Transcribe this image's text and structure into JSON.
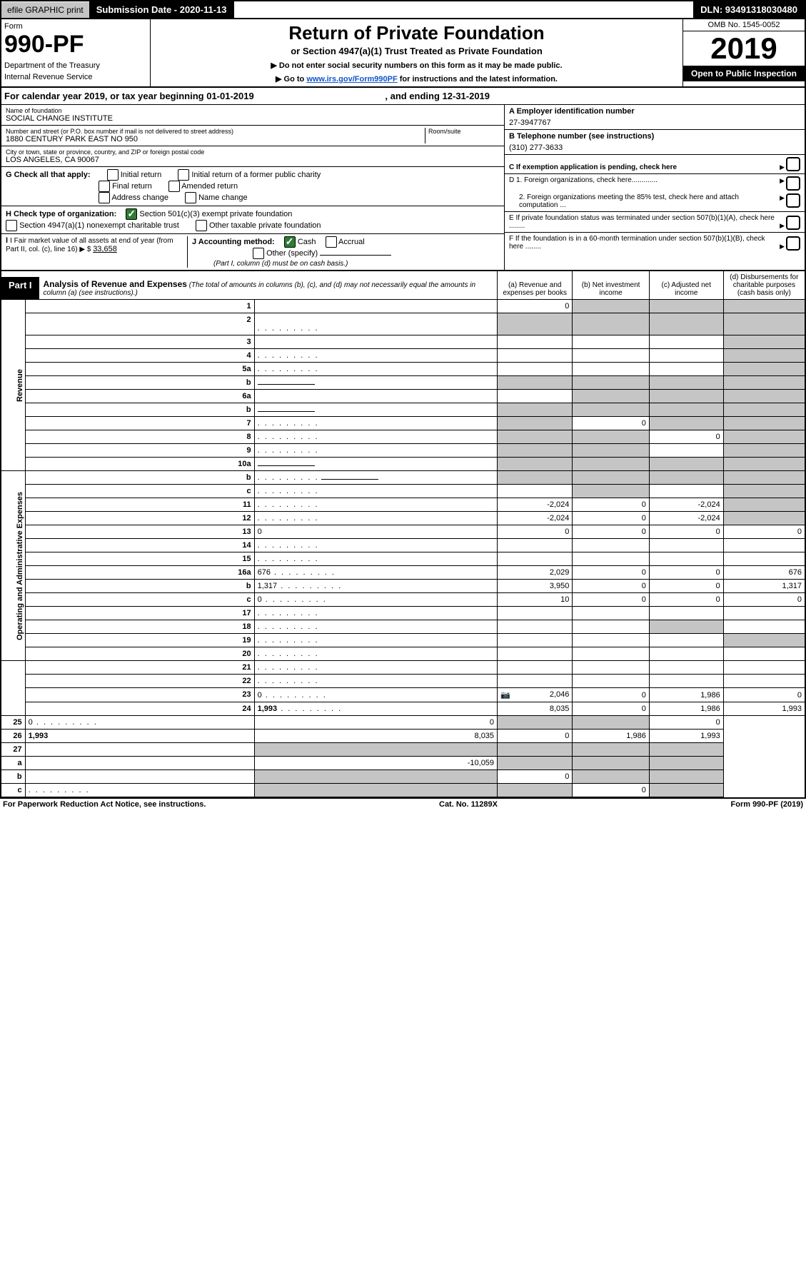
{
  "topbar": {
    "efile": "efile GRAPHIC print",
    "submission": "Submission Date - 2020-11-13",
    "dln": "DLN: 93491318030480"
  },
  "header": {
    "form_label": "Form",
    "form_number": "990-PF",
    "dept1": "Department of the Treasury",
    "dept2": "Internal Revenue Service",
    "title": "Return of Private Foundation",
    "subtitle": "or Section 4947(a)(1) Trust Treated as Private Foundation",
    "instr1": "▶ Do not enter social security numbers on this form as it may be made public.",
    "instr2_pre": "▶ Go to ",
    "instr2_link": "www.irs.gov/Form990PF",
    "instr2_post": " for instructions and the latest information.",
    "omb": "OMB No. 1545-0052",
    "year": "2019",
    "inspection": "Open to Public Inspection"
  },
  "calyear": {
    "text": "For calendar year 2019, or tax year beginning 01-01-2019",
    "ending": ", and ending 12-31-2019"
  },
  "entity": {
    "name_label": "Name of foundation",
    "name": "SOCIAL CHANGE INSTITUTE",
    "addr_label": "Number and street (or P.O. box number if mail is not delivered to street address)",
    "addr": "1880 CENTURY PARK EAST NO 950",
    "room_label": "Room/suite",
    "city_label": "City or town, state or province, country, and ZIP or foreign postal code",
    "city": "LOS ANGELES, CA  90067",
    "ein_label": "A Employer identification number",
    "ein": "27-3947767",
    "phone_label": "B Telephone number (see instructions)",
    "phone": "(310) 277-3633",
    "c_label": "C If exemption application is pending, check here",
    "d1": "D 1. Foreign organizations, check here.............",
    "d2": "2. Foreign organizations meeting the 85% test, check here and attach computation ...",
    "e_label": "E  If private foundation status was terminated under section 507(b)(1)(A), check here ........",
    "f_label": "F  If the foundation is in a 60-month termination under section 507(b)(1)(B), check here ........",
    "g_label": "G Check all that apply:",
    "g_opts": [
      "Initial return",
      "Initial return of a former public charity",
      "Final return",
      "Amended return",
      "Address change",
      "Name change"
    ],
    "h_label": "H Check type of organization:",
    "h_501c3": "Section 501(c)(3) exempt private foundation",
    "h_4947": "Section 4947(a)(1) nonexempt charitable trust",
    "h_other": "Other taxable private foundation",
    "i_label": "I Fair market value of all assets at end of year (from Part II, col. (c), line 16) ▶ $ ",
    "i_value": "33,658",
    "j_label": "J Accounting method:",
    "j_cash": "Cash",
    "j_accrual": "Accrual",
    "j_other": "Other (specify)",
    "j_note": "(Part I, column (d) must be on cash basis.)"
  },
  "part1": {
    "label": "Part I",
    "title": "Analysis of Revenue and Expenses",
    "note": "(The total of amounts in columns (b), (c), and (d) may not necessarily equal the amounts in column (a) (see instructions).)",
    "col_a": "(a)   Revenue and expenses per books",
    "col_b": "(b)  Net investment income",
    "col_c": "(c)  Adjusted net income",
    "col_d": "(d)  Disbursements for charitable purposes (cash basis only)"
  },
  "sections": {
    "revenue": "Revenue",
    "opex": "Operating and Administrative Expenses"
  },
  "rows": [
    {
      "n": "1",
      "d": "",
      "a": "0",
      "b": "",
      "c": "",
      "sh": [
        "b",
        "c",
        "d"
      ]
    },
    {
      "n": "2",
      "d": "",
      "a": "",
      "b": "",
      "c": "",
      "sh": [
        "a",
        "b",
        "c",
        "d"
      ],
      "bold_not": true,
      "dotsafter": true
    },
    {
      "n": "3",
      "d": "",
      "a": "",
      "b": "",
      "c": "",
      "sh": [
        "d"
      ]
    },
    {
      "n": "4",
      "d": "",
      "a": "",
      "b": "",
      "c": "",
      "sh": [
        "d"
      ],
      "dots": true
    },
    {
      "n": "5a",
      "d": "",
      "a": "",
      "b": "",
      "c": "",
      "sh": [
        "d"
      ],
      "dots": true
    },
    {
      "n": "b",
      "d": "",
      "a": "",
      "b": "",
      "c": "",
      "sh": [
        "a",
        "b",
        "c",
        "d"
      ],
      "inline_blank": true
    },
    {
      "n": "6a",
      "d": "",
      "a": "",
      "b": "",
      "c": "",
      "sh": [
        "b",
        "c",
        "d"
      ]
    },
    {
      "n": "b",
      "d": "",
      "a": "",
      "b": "",
      "c": "",
      "sh": [
        "a",
        "b",
        "c",
        "d"
      ],
      "inline_blank": true
    },
    {
      "n": "7",
      "d": "",
      "a": "",
      "b": "0",
      "c": "",
      "sh": [
        "a",
        "c",
        "d"
      ],
      "dots": true
    },
    {
      "n": "8",
      "d": "",
      "a": "",
      "b": "",
      "c": "0",
      "sh": [
        "a",
        "b",
        "d"
      ],
      "dots": true
    },
    {
      "n": "9",
      "d": "",
      "a": "",
      "b": "",
      "c": "",
      "sh": [
        "a",
        "b",
        "d"
      ],
      "dots": true
    },
    {
      "n": "10a",
      "d": "",
      "a": "",
      "b": "",
      "c": "",
      "sh": [
        "a",
        "b",
        "c",
        "d"
      ],
      "inline_blank": true
    },
    {
      "n": "b",
      "d": "",
      "a": "",
      "b": "",
      "c": "",
      "sh": [
        "a",
        "b",
        "c",
        "d"
      ],
      "inline_blank": true,
      "dots": true
    },
    {
      "n": "c",
      "d": "",
      "a": "",
      "b": "",
      "c": "",
      "sh": [
        "b",
        "d"
      ],
      "dots": true
    },
    {
      "n": "11",
      "d": "",
      "a": "-2,024",
      "b": "0",
      "c": "-2,024",
      "sh": [
        "d"
      ],
      "dots": true
    },
    {
      "n": "12",
      "d": "",
      "a": "-2,024",
      "b": "0",
      "c": "-2,024",
      "sh": [
        "d"
      ],
      "bold": true,
      "dots": true
    },
    {
      "n": "13",
      "d": "0",
      "a": "0",
      "b": "0",
      "c": "0"
    },
    {
      "n": "14",
      "d": "",
      "a": "",
      "b": "",
      "c": "",
      "dots": true
    },
    {
      "n": "15",
      "d": "",
      "a": "",
      "b": "",
      "c": "",
      "dots": true
    },
    {
      "n": "16a",
      "d": "676",
      "a": "2,029",
      "b": "0",
      "c": "0",
      "dots": true
    },
    {
      "n": "b",
      "d": "1,317",
      "a": "3,950",
      "b": "0",
      "c": "0",
      "dots": true
    },
    {
      "n": "c",
      "d": "0",
      "a": "10",
      "b": "0",
      "c": "0",
      "dots": true
    },
    {
      "n": "17",
      "d": "",
      "a": "",
      "b": "",
      "c": "",
      "dots": true
    },
    {
      "n": "18",
      "d": "",
      "a": "",
      "b": "",
      "c": "",
      "sh": [
        "c"
      ],
      "dots": true
    },
    {
      "n": "19",
      "d": "",
      "a": "",
      "b": "",
      "c": "",
      "sh": [
        "d"
      ],
      "dots": true
    },
    {
      "n": "20",
      "d": "",
      "a": "",
      "b": "",
      "c": "",
      "dots": true
    },
    {
      "n": "21",
      "d": "",
      "a": "",
      "b": "",
      "c": "",
      "dots": true
    },
    {
      "n": "22",
      "d": "",
      "a": "",
      "b": "",
      "c": "",
      "dots": true
    },
    {
      "n": "23",
      "d": "0",
      "a": "2,046",
      "b": "0",
      "c": "1,986",
      "dots": true,
      "camera": true
    },
    {
      "n": "24",
      "d": "1,993",
      "a": "8,035",
      "b": "0",
      "c": "1,986",
      "bold": true,
      "dots": true,
      "twoline": true
    },
    {
      "n": "25",
      "d": "0",
      "a": "0",
      "b": "",
      "c": "",
      "sh": [
        "b",
        "c"
      ],
      "dots": true
    },
    {
      "n": "26",
      "d": "1,993",
      "a": "8,035",
      "b": "0",
      "c": "1,986",
      "bold": true,
      "twoline": true
    },
    {
      "n": "27",
      "d": "",
      "a": "",
      "b": "",
      "c": "",
      "sh": [
        "a",
        "b",
        "c",
        "d"
      ]
    },
    {
      "n": "a",
      "d": "",
      "a": "-10,059",
      "b": "",
      "c": "",
      "sh": [
        "b",
        "c",
        "d"
      ],
      "bold": true
    },
    {
      "n": "b",
      "d": "",
      "a": "",
      "b": "0",
      "c": "",
      "sh": [
        "a",
        "c",
        "d"
      ],
      "bold": true
    },
    {
      "n": "c",
      "d": "",
      "a": "",
      "b": "",
      "c": "0",
      "sh": [
        "a",
        "b",
        "d"
      ],
      "bold": true,
      "dots": true
    }
  ],
  "footer": {
    "left": "For Paperwork Reduction Act Notice, see instructions.",
    "center": "Cat. No. 11289X",
    "right": "Form 990-PF (2019)"
  }
}
